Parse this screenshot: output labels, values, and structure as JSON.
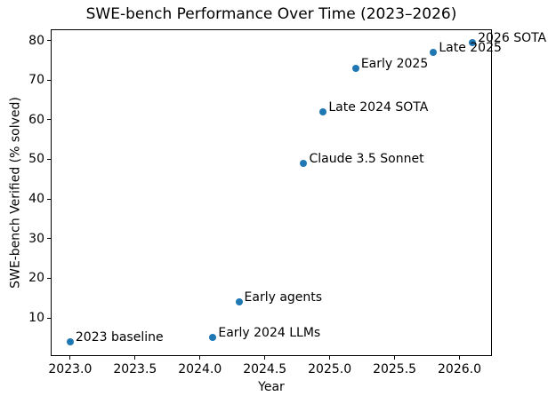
{
  "chart_data": {
    "type": "scatter",
    "title": "SWE-bench Performance Over Time (2023–2026)",
    "xlabel": "Year",
    "ylabel": "SWE-bench Verified (% solved)",
    "points": [
      {
        "x": 2023.0,
        "y": 4,
        "label": "2023 baseline"
      },
      {
        "x": 2024.1,
        "y": 5,
        "label": "Early 2024 LLMs"
      },
      {
        "x": 2024.3,
        "y": 14,
        "label": "Early agents"
      },
      {
        "x": 2024.8,
        "y": 49,
        "label": "Claude 3.5 Sonnet"
      },
      {
        "x": 2024.95,
        "y": 62,
        "label": "Late 2024 SOTA"
      },
      {
        "x": 2025.2,
        "y": 73,
        "label": "Early 2025"
      },
      {
        "x": 2025.8,
        "y": 77,
        "label": "Late 2025"
      },
      {
        "x": 2026.1,
        "y": 79.5,
        "label": "2026 SOTA"
      }
    ],
    "xticks": [
      {
        "v": 2023.0,
        "label": "2023.0"
      },
      {
        "v": 2023.5,
        "label": "2023.5"
      },
      {
        "v": 2024.0,
        "label": "2024.0"
      },
      {
        "v": 2024.5,
        "label": "2024.5"
      },
      {
        "v": 2025.0,
        "label": "2025.0"
      },
      {
        "v": 2025.5,
        "label": "2025.5"
      },
      {
        "v": 2026.0,
        "label": "2026.0"
      }
    ],
    "yticks": [
      {
        "v": 10,
        "label": "10"
      },
      {
        "v": 20,
        "label": "20"
      },
      {
        "v": 30,
        "label": "30"
      },
      {
        "v": 40,
        "label": "40"
      },
      {
        "v": 50,
        "label": "50"
      },
      {
        "v": 60,
        "label": "60"
      },
      {
        "v": 70,
        "label": "70"
      },
      {
        "v": 80,
        "label": "80"
      }
    ],
    "xlim": [
      2022.85,
      2026.25
    ],
    "ylim": [
      0.4,
      82.8
    ],
    "grid": false,
    "legend": null,
    "marker_color": "#1f77b4",
    "text_color": "#000000",
    "background_color": "#ffffff"
  }
}
